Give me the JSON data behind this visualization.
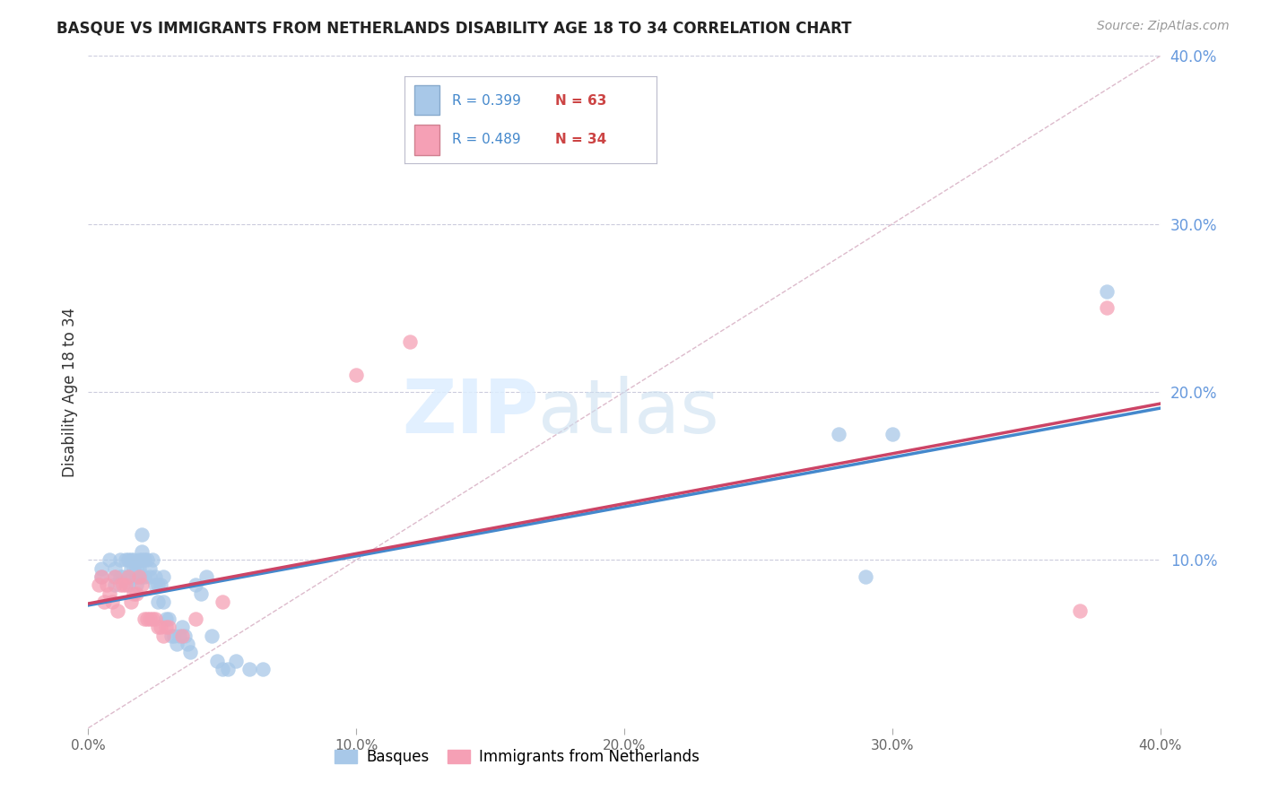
{
  "title": "BASQUE VS IMMIGRANTS FROM NETHERLANDS DISABILITY AGE 18 TO 34 CORRELATION CHART",
  "source": "Source: ZipAtlas.com",
  "ylabel": "Disability Age 18 to 34",
  "xlim": [
    0.0,
    0.4
  ],
  "ylim": [
    0.0,
    0.4
  ],
  "xticks": [
    0.0,
    0.1,
    0.2,
    0.3,
    0.4
  ],
  "yticks": [
    0.1,
    0.2,
    0.3,
    0.4
  ],
  "xticklabels": [
    "0.0%",
    "10.0%",
    "20.0%",
    "30.0%",
    "40.0%"
  ],
  "yticklabels": [
    "10.0%",
    "20.0%",
    "30.0%",
    "40.0%"
  ],
  "right_yticks": [
    0.1,
    0.2,
    0.3,
    0.4
  ],
  "right_yticklabels": [
    "10.0%",
    "20.0%",
    "30.0%",
    "40.0%"
  ],
  "legend1_R": "0.399",
  "legend1_N": "63",
  "legend2_R": "0.489",
  "legend2_N": "34",
  "basque_color": "#a8c8e8",
  "netherlands_color": "#f5a0b5",
  "basque_edge_color": "#88aacc",
  "netherlands_edge_color": "#d08090",
  "basque_line_color": "#4488cc",
  "netherlands_line_color": "#cc4466",
  "diag_line_color": "#ccccdd",
  "basque_x": [
    0.005,
    0.005,
    0.008,
    0.01,
    0.01,
    0.01,
    0.012,
    0.012,
    0.013,
    0.014,
    0.015,
    0.015,
    0.015,
    0.016,
    0.016,
    0.017,
    0.017,
    0.018,
    0.018,
    0.018,
    0.019,
    0.019,
    0.02,
    0.02,
    0.02,
    0.02,
    0.021,
    0.021,
    0.022,
    0.023,
    0.023,
    0.024,
    0.025,
    0.025,
    0.026,
    0.026,
    0.027,
    0.028,
    0.028,
    0.029,
    0.03,
    0.031,
    0.032,
    0.033,
    0.034,
    0.035,
    0.036,
    0.037,
    0.038,
    0.04,
    0.042,
    0.044,
    0.046,
    0.048,
    0.05,
    0.052,
    0.055,
    0.06,
    0.065,
    0.28,
    0.29,
    0.3,
    0.38
  ],
  "basque_y": [
    0.09,
    0.095,
    0.1,
    0.085,
    0.09,
    0.095,
    0.09,
    0.1,
    0.09,
    0.1,
    0.085,
    0.09,
    0.1,
    0.095,
    0.1,
    0.095,
    0.1,
    0.085,
    0.09,
    0.095,
    0.095,
    0.1,
    0.09,
    0.1,
    0.105,
    0.115,
    0.09,
    0.1,
    0.1,
    0.09,
    0.095,
    0.1,
    0.085,
    0.09,
    0.075,
    0.085,
    0.085,
    0.075,
    0.09,
    0.065,
    0.065,
    0.055,
    0.055,
    0.05,
    0.055,
    0.06,
    0.055,
    0.05,
    0.045,
    0.085,
    0.08,
    0.09,
    0.055,
    0.04,
    0.035,
    0.035,
    0.04,
    0.035,
    0.035,
    0.175,
    0.09,
    0.175,
    0.26
  ],
  "netherlands_x": [
    0.004,
    0.005,
    0.006,
    0.007,
    0.008,
    0.009,
    0.01,
    0.011,
    0.012,
    0.013,
    0.014,
    0.015,
    0.016,
    0.017,
    0.018,
    0.019,
    0.02,
    0.021,
    0.022,
    0.023,
    0.024,
    0.025,
    0.026,
    0.027,
    0.028,
    0.029,
    0.03,
    0.035,
    0.04,
    0.05,
    0.1,
    0.12,
    0.37,
    0.38
  ],
  "netherlands_y": [
    0.085,
    0.09,
    0.075,
    0.085,
    0.08,
    0.075,
    0.09,
    0.07,
    0.085,
    0.085,
    0.085,
    0.09,
    0.075,
    0.08,
    0.08,
    0.09,
    0.085,
    0.065,
    0.065,
    0.065,
    0.065,
    0.065,
    0.06,
    0.06,
    0.055,
    0.06,
    0.06,
    0.055,
    0.065,
    0.075,
    0.21,
    0.23,
    0.07,
    0.25
  ],
  "background_color": "#ffffff"
}
